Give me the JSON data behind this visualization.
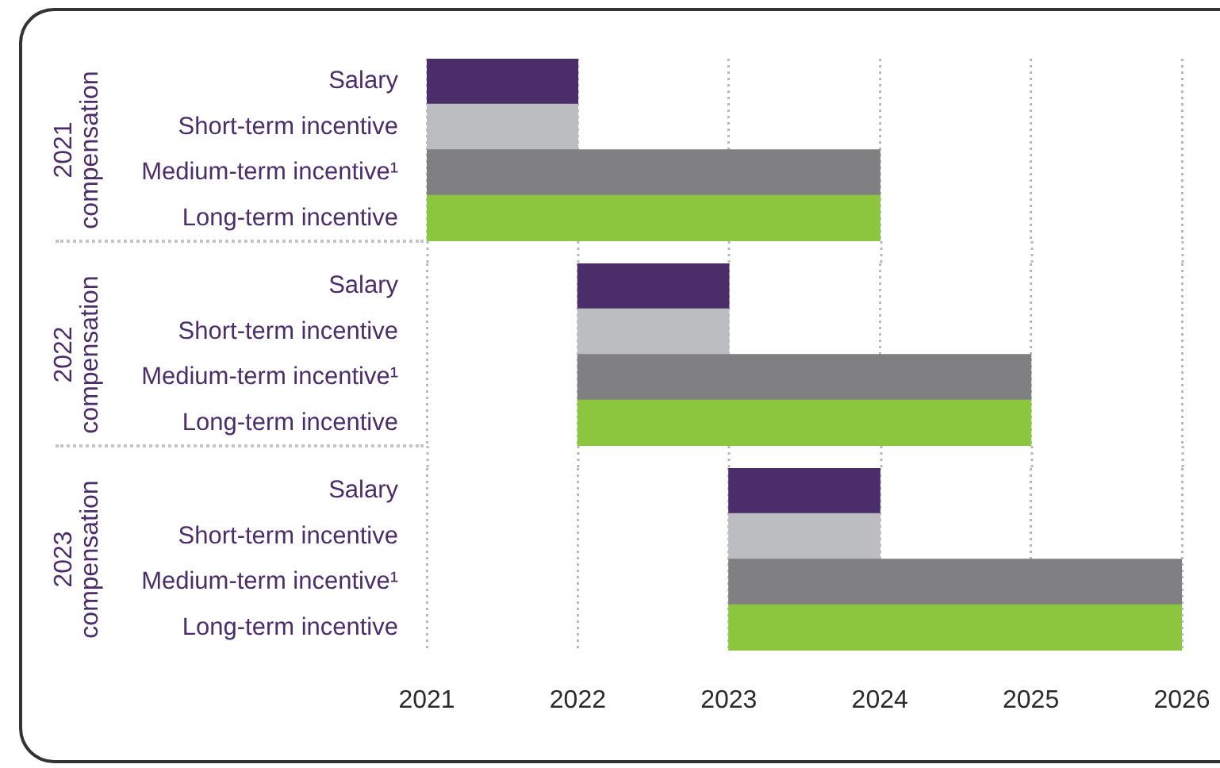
{
  "chart_data": [
    {
      "type": "bar",
      "orientation": "horizontal",
      "ylabel": "2021 compensation",
      "categories": [
        "Salary",
        "Short-term incentive",
        "Medium-term incentive¹",
        "Long-term incentive"
      ],
      "base": [
        2021,
        2021,
        2021,
        2021
      ],
      "values": [
        1,
        1,
        3,
        3
      ],
      "colors": [
        "#4b2d6a",
        "#bcbdc0",
        "#808083",
        "#8cc63f"
      ],
      "xlim": [
        2021,
        2026
      ],
      "xticks": [
        2021,
        2022,
        2023,
        2024,
        2025,
        2026
      ],
      "grid": "x",
      "tick_labels": "y"
    },
    {
      "type": "bar",
      "orientation": "horizontal",
      "ylabel": "2022 compensation",
      "categories": [
        "Salary",
        "Short-term incentive",
        "Medium-term incentive¹",
        "Long-term incentive"
      ],
      "base": [
        2022,
        2022,
        2022,
        2022
      ],
      "values": [
        1,
        1,
        3,
        3
      ],
      "colors": [
        "#4b2d6a",
        "#bcbdc0",
        "#808083",
        "#8cc63f"
      ],
      "xlim": [
        2021,
        2026
      ],
      "xticks": [
        2021,
        2022,
        2023,
        2024,
        2025,
        2026
      ],
      "grid": "x",
      "tick_labels": "y"
    },
    {
      "type": "bar",
      "orientation": "horizontal",
      "ylabel": "2023 compensation",
      "categories": [
        "Salary",
        "Short-term incentive",
        "Medium-term incentive¹",
        "Long-term incentive"
      ],
      "base": [
        2023,
        2023,
        2023,
        2023
      ],
      "values": [
        1,
        1,
        3,
        3
      ],
      "colors": [
        "#4b2d6a",
        "#bcbdc0",
        "#808083",
        "#8cc63f"
      ],
      "xlim": [
        2021,
        2026
      ],
      "xticks": [
        2021,
        2022,
        2023,
        2024,
        2025,
        2026
      ],
      "grid": "x"
    }
  ]
}
